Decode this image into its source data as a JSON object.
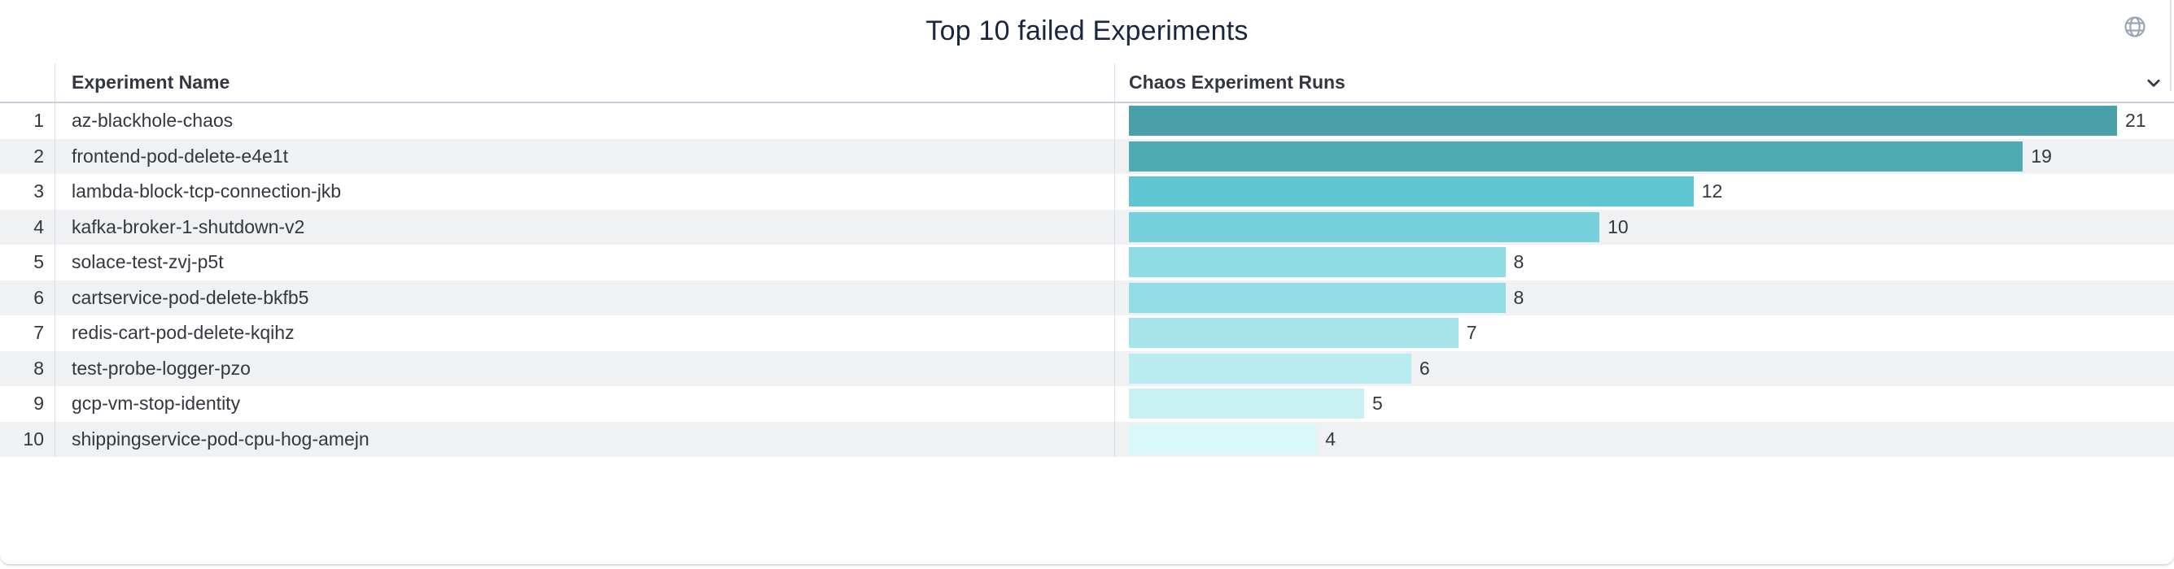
{
  "panel": {
    "title": "Top 10 failed Experiments"
  },
  "table": {
    "columns": [
      {
        "label": "Experiment Name"
      },
      {
        "label": "Chaos Experiment Runs",
        "sorted": "descending"
      }
    ],
    "rows": [
      {
        "index": "1",
        "name": "az-blackhole-chaos",
        "runs": "21",
        "bar_color": "#4aa0a8"
      },
      {
        "index": "2",
        "name": "frontend-pod-delete-e4e1t",
        "runs": "19",
        "bar_color": "#50aab2"
      },
      {
        "index": "3",
        "name": "lambda-block-tcp-connection-jkb",
        "runs": "12",
        "bar_color": "#5dc6d1"
      },
      {
        "index": "4",
        "name": "kafka-broker-1-shutdown-v2",
        "runs": "10",
        "bar_color": "#76d1dc"
      },
      {
        "index": "5",
        "name": "solace-test-zvj-p5t",
        "runs": "8",
        "bar_color": "#8fdce3"
      },
      {
        "index": "6",
        "name": "cartservice-pod-delete-bkfb5",
        "runs": "8",
        "bar_color": "#92dde4"
      },
      {
        "index": "7",
        "name": "redis-cart-pod-delete-kqihz",
        "runs": "7",
        "bar_color": "#a6e4ea"
      },
      {
        "index": "8",
        "name": "test-probe-logger-pzo",
        "runs": "6",
        "bar_color": "#b8ecf0"
      },
      {
        "index": "9",
        "name": "gcp-vm-stop-identity",
        "runs": "5",
        "bar_color": "#c9f1f4"
      },
      {
        "index": "10",
        "name": "shippingservice-pod-cpu-hog-amejn",
        "runs": "4",
        "bar_color": "#daf7f9"
      }
    ]
  },
  "icons": {
    "globe": "globe-icon",
    "sort": "chevron-down-icon"
  },
  "colors": {
    "title_text": "#18263f",
    "table_text": "#343741",
    "stripe": "#f0f1f2",
    "divider": "#d9dde3",
    "header_border": "#c9cfd8",
    "globe_icon": "#9aa6b8"
  },
  "chart_data": {
    "type": "bar",
    "orientation": "horizontal",
    "title": "Top 10 failed Experiments",
    "category_label": "Experiment Name",
    "value_label": "Chaos Experiment Runs",
    "categories": [
      "az-blackhole-chaos",
      "frontend-pod-delete-e4e1t",
      "lambda-block-tcp-connection-jkb",
      "kafka-broker-1-shutdown-v2",
      "solace-test-zvj-p5t",
      "cartservice-pod-delete-bkfb5",
      "redis-cart-pod-delete-kqihz",
      "test-probe-logger-pzo",
      "gcp-vm-stop-identity",
      "shippingservice-pod-cpu-hog-amejn"
    ],
    "values": [
      21,
      19,
      12,
      10,
      8,
      8,
      7,
      6,
      5,
      4
    ],
    "xlim": [
      0,
      22
    ],
    "sort": "descending",
    "value_labels": "outside-end",
    "grid": false,
    "legend": false,
    "palette": [
      "#4aa0a8",
      "#50aab2",
      "#5dc6d1",
      "#76d1dc",
      "#8fdce3",
      "#92dde4",
      "#a6e4ea",
      "#b8ecf0",
      "#c9f1f4",
      "#daf7f9"
    ]
  }
}
